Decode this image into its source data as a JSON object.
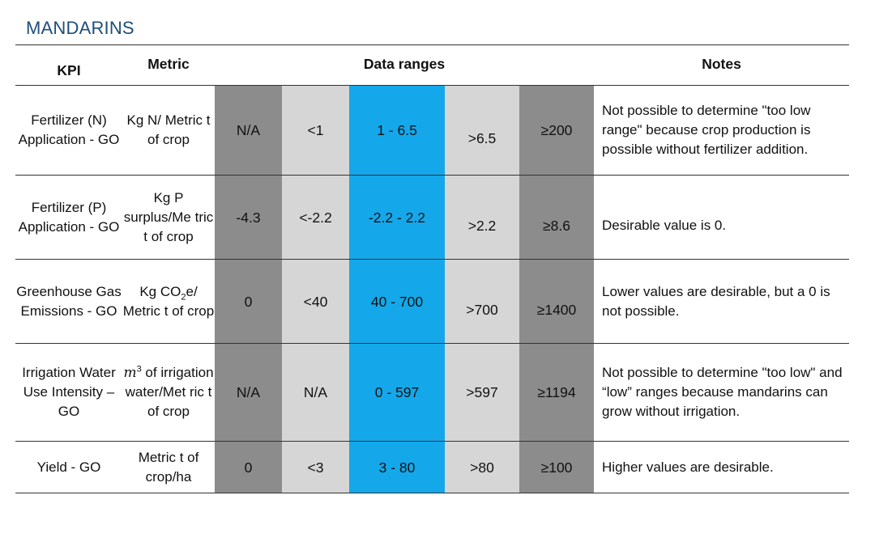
{
  "title": "MANDARINS",
  "headers": {
    "kpi": "KPI",
    "metric": "Metric",
    "ranges": "Data ranges",
    "notes": "Notes"
  },
  "rows": [
    {
      "kpi": "Fertilizer (N) Application - GO",
      "metric": "Kg N/ Metric t of crop",
      "ranges": [
        "N/A",
        "<1",
        "1 - 6.5",
        ">6.5",
        "≥200"
      ],
      "note": "Not possible to determine \"too low range\" because crop production is possible without fertilizer addition."
    },
    {
      "kpi": "Fertilizer (P) Application - GO",
      "metric": "Kg P surplus/Me tric t of crop",
      "ranges": [
        "-4.3",
        "<-2.2",
        "-2.2 - 2.2",
        ">2.2",
        "≥8.6"
      ],
      "note": "Desirable value is 0."
    },
    {
      "kpi": "Greenhouse Gas Emissions - GO",
      "metric_parts": [
        "Kg CO",
        "2",
        "e/ Metric t of crop"
      ],
      "ranges": [
        "0",
        "<40",
        "40 - 700",
        ">700",
        "≥1400"
      ],
      "note": "Lower values are desirable, but a 0 is not possible."
    },
    {
      "kpi": "Irrigation Water Use Intensity – GO",
      "metric_parts": [
        "m",
        "3",
        " of irrigation water/Met ric t of crop"
      ],
      "ranges": [
        "N/A",
        "N/A",
        "0 - 597",
        ">597",
        "≥1194"
      ],
      "note": "Not possible to determine \"too low\" and “low” ranges because mandarins can grow without irrigation."
    },
    {
      "kpi": "Yield - GO",
      "metric": "Metric t of crop/ha",
      "ranges": [
        "0",
        "<3",
        "3 - 80",
        ">80",
        "≥100"
      ],
      "note": "Higher values are desirable."
    }
  ],
  "colors": {
    "title": "#1f4e79",
    "dark_gray": "#8c8c8c",
    "light_gray": "#d6d6d6",
    "blue": "#14a8ea"
  }
}
